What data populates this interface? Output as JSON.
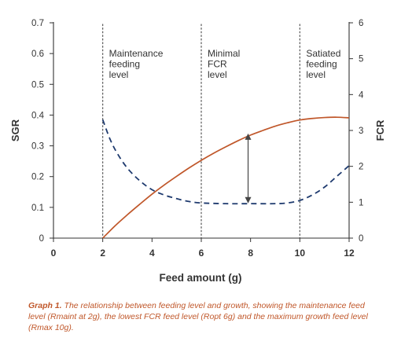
{
  "chart_data": {
    "type": "line",
    "xlabel": "Feed amount (g)",
    "ylabel": "SGR",
    "y2label": "FCR",
    "xlim": [
      0,
      12
    ],
    "ylim": [
      0,
      0.7
    ],
    "y2lim": [
      0,
      6
    ],
    "x_ticks": [
      "0",
      "2",
      "4",
      "6",
      "8",
      "10",
      "12"
    ],
    "y_ticks": [
      "0",
      "0.1",
      "0.2",
      "0.3",
      "0.4",
      "0.5",
      "0.6",
      "0.7"
    ],
    "y2_ticks": [
      "0",
      "1",
      "2",
      "3",
      "4",
      "5",
      "6"
    ],
    "grid": false,
    "series": [
      {
        "axis": "left",
        "style": "solid",
        "color": "#c0572a",
        "x": [
          2.0,
          2.5,
          3.0,
          3.5,
          4.0,
          4.5,
          5.0,
          5.5,
          6.0,
          6.5,
          7.0,
          7.5,
          8.0,
          8.5,
          9.0,
          9.5,
          10.0,
          10.5,
          11.0,
          11.5,
          12.0
        ],
        "values": [
          0.0,
          0.04,
          0.076,
          0.11,
          0.143,
          0.173,
          0.201,
          0.228,
          0.253,
          0.276,
          0.297,
          0.317,
          0.335,
          0.35,
          0.364,
          0.375,
          0.384,
          0.389,
          0.392,
          0.393,
          0.391
        ]
      },
      {
        "axis": "right",
        "style": "dashed",
        "color": "#1e3a6e",
        "x": [
          2.0,
          2.3,
          2.6,
          3.0,
          3.5,
          4.0,
          4.5,
          5.0,
          5.5,
          6.0,
          7.0,
          8.0,
          9.0,
          9.5,
          10.0,
          10.5,
          11.0,
          11.5,
          12.0
        ],
        "values": [
          3.3,
          2.75,
          2.35,
          1.95,
          1.6,
          1.35,
          1.2,
          1.1,
          1.02,
          0.98,
          0.96,
          0.96,
          0.96,
          0.98,
          1.05,
          1.2,
          1.42,
          1.72,
          2.02
        ]
      }
    ],
    "vlines": [
      {
        "x": 2,
        "label": [
          "Maintenance",
          "feeding",
          "level"
        ]
      },
      {
        "x": 6,
        "label": [
          "Minimal",
          "FCR",
          "level"
        ]
      },
      {
        "x": 10,
        "label": [
          "Satiated",
          "feeding",
          "level"
        ]
      }
    ],
    "arrow": {
      "x": 7.9,
      "y1": 0.34,
      "y2": 0.113,
      "color": "#444444"
    },
    "colors": {
      "axis": "#333333",
      "vline": "#555555",
      "sgr": "#c0572a",
      "fcr": "#1e3a6e",
      "caption": "#c0572a"
    }
  },
  "caption": {
    "lead": "Graph 1.",
    "text": " The relationship between feeding level and growth, showing the maintenance feed level (Rmaint at 2g), the lowest FCR feed level (Ropt 6g) and the maximum growth feed level (Rmax 10g)."
  }
}
